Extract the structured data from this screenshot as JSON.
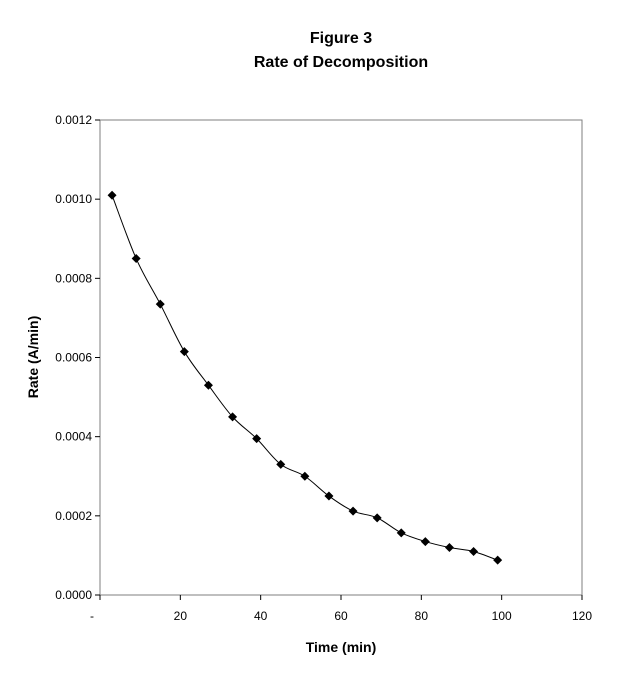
{
  "chart_data": {
    "type": "scatter",
    "title": "Figure 3",
    "subtitle": "Rate of Decomposition",
    "xlabel": "Time (min)",
    "ylabel": "Rate (A/min)",
    "xlim": [
      0,
      120
    ],
    "ylim": [
      0,
      0.0012
    ],
    "x_ticks": [
      "-",
      "20",
      "40",
      "60",
      "80",
      "100",
      "120"
    ],
    "y_ticks": [
      "0.0000",
      "0.0002",
      "0.0004",
      "0.0006",
      "0.0008",
      "0.0010",
      "0.0012"
    ],
    "grid": false,
    "legend": "none",
    "marker": "diamond",
    "line": "smooth",
    "color": "#000000",
    "series": [
      {
        "x": [
          3,
          9,
          15,
          21,
          27,
          33,
          39,
          45,
          51,
          57,
          63,
          69,
          75,
          81,
          87,
          93,
          99
        ],
        "y": [
          0.00101,
          0.00085,
          0.000735,
          0.000615,
          0.00053,
          0.00045,
          0.000395,
          0.00033,
          0.0003,
          0.00025,
          0.000212,
          0.000195,
          0.000157,
          0.000135,
          0.00012,
          0.00011,
          8.8e-05
        ]
      }
    ]
  }
}
